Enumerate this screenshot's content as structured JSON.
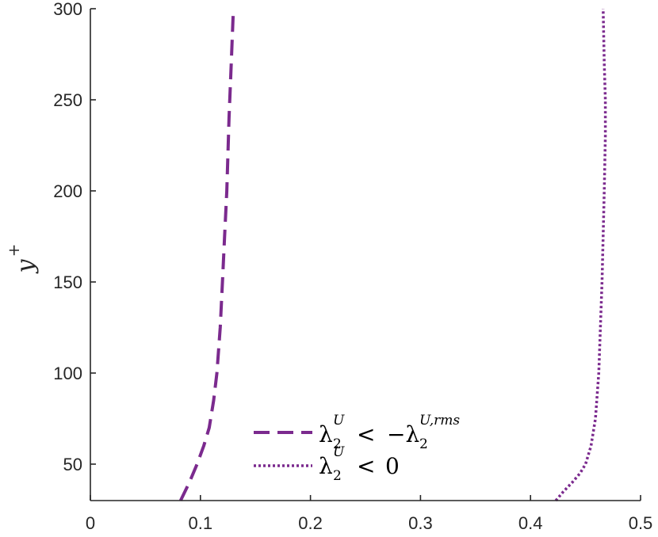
{
  "chart_data": {
    "type": "line",
    "title": "",
    "xlabel": "",
    "ylabel": "y",
    "ylabel_superscript": "+",
    "xlim": [
      0,
      0.5
    ],
    "ylim": [
      30,
      300
    ],
    "xticks": [
      0,
      0.1,
      0.2,
      0.3,
      0.4,
      0.5
    ],
    "xtick_labels": [
      "0",
      "0.1",
      "0.2",
      "0.3",
      "0.4",
      "0.5"
    ],
    "yticks": [
      50,
      100,
      150,
      200,
      250,
      300
    ],
    "ytick_labels": [
      "50",
      "100",
      "150",
      "200",
      "250",
      "300"
    ],
    "grid": false,
    "legend_position": "bottom-center",
    "line_color": "#7b2a8e",
    "series": [
      {
        "name": "λ2U < −λ2U,rms",
        "style": "dashed",
        "x": [
          0.082,
          0.09,
          0.097,
          0.103,
          0.108,
          0.112,
          0.115,
          0.118,
          0.12,
          0.122,
          0.124,
          0.126,
          0.128,
          0.13
        ],
        "y": [
          30,
          40,
          50,
          60,
          70,
          85,
          100,
          125,
          150,
          175,
          200,
          240,
          270,
          300
        ]
      },
      {
        "name": "λ2U < 0",
        "style": "dotted",
        "x": [
          0.423,
          0.43,
          0.438,
          0.445,
          0.45,
          0.455,
          0.459,
          0.462,
          0.465,
          0.467,
          0.468,
          0.468,
          0.467,
          0.466
        ],
        "y": [
          30,
          35,
          40,
          45,
          50,
          60,
          75,
          100,
          150,
          200,
          230,
          250,
          270,
          300
        ]
      }
    ],
    "legend": {
      "entries": [
        {
          "base": "λ",
          "sub": "2",
          "sup": "U",
          "rel": "<",
          "rhs_prefix": "−λ",
          "rhs_sub": "2",
          "rhs_sup": "U,rms",
          "rhs_plain": ""
        },
        {
          "base": "λ",
          "sub": "2",
          "sup": "U",
          "rel": "<",
          "rhs_prefix": "",
          "rhs_sub": "",
          "rhs_sup": "",
          "rhs_plain": "0"
        }
      ]
    }
  }
}
